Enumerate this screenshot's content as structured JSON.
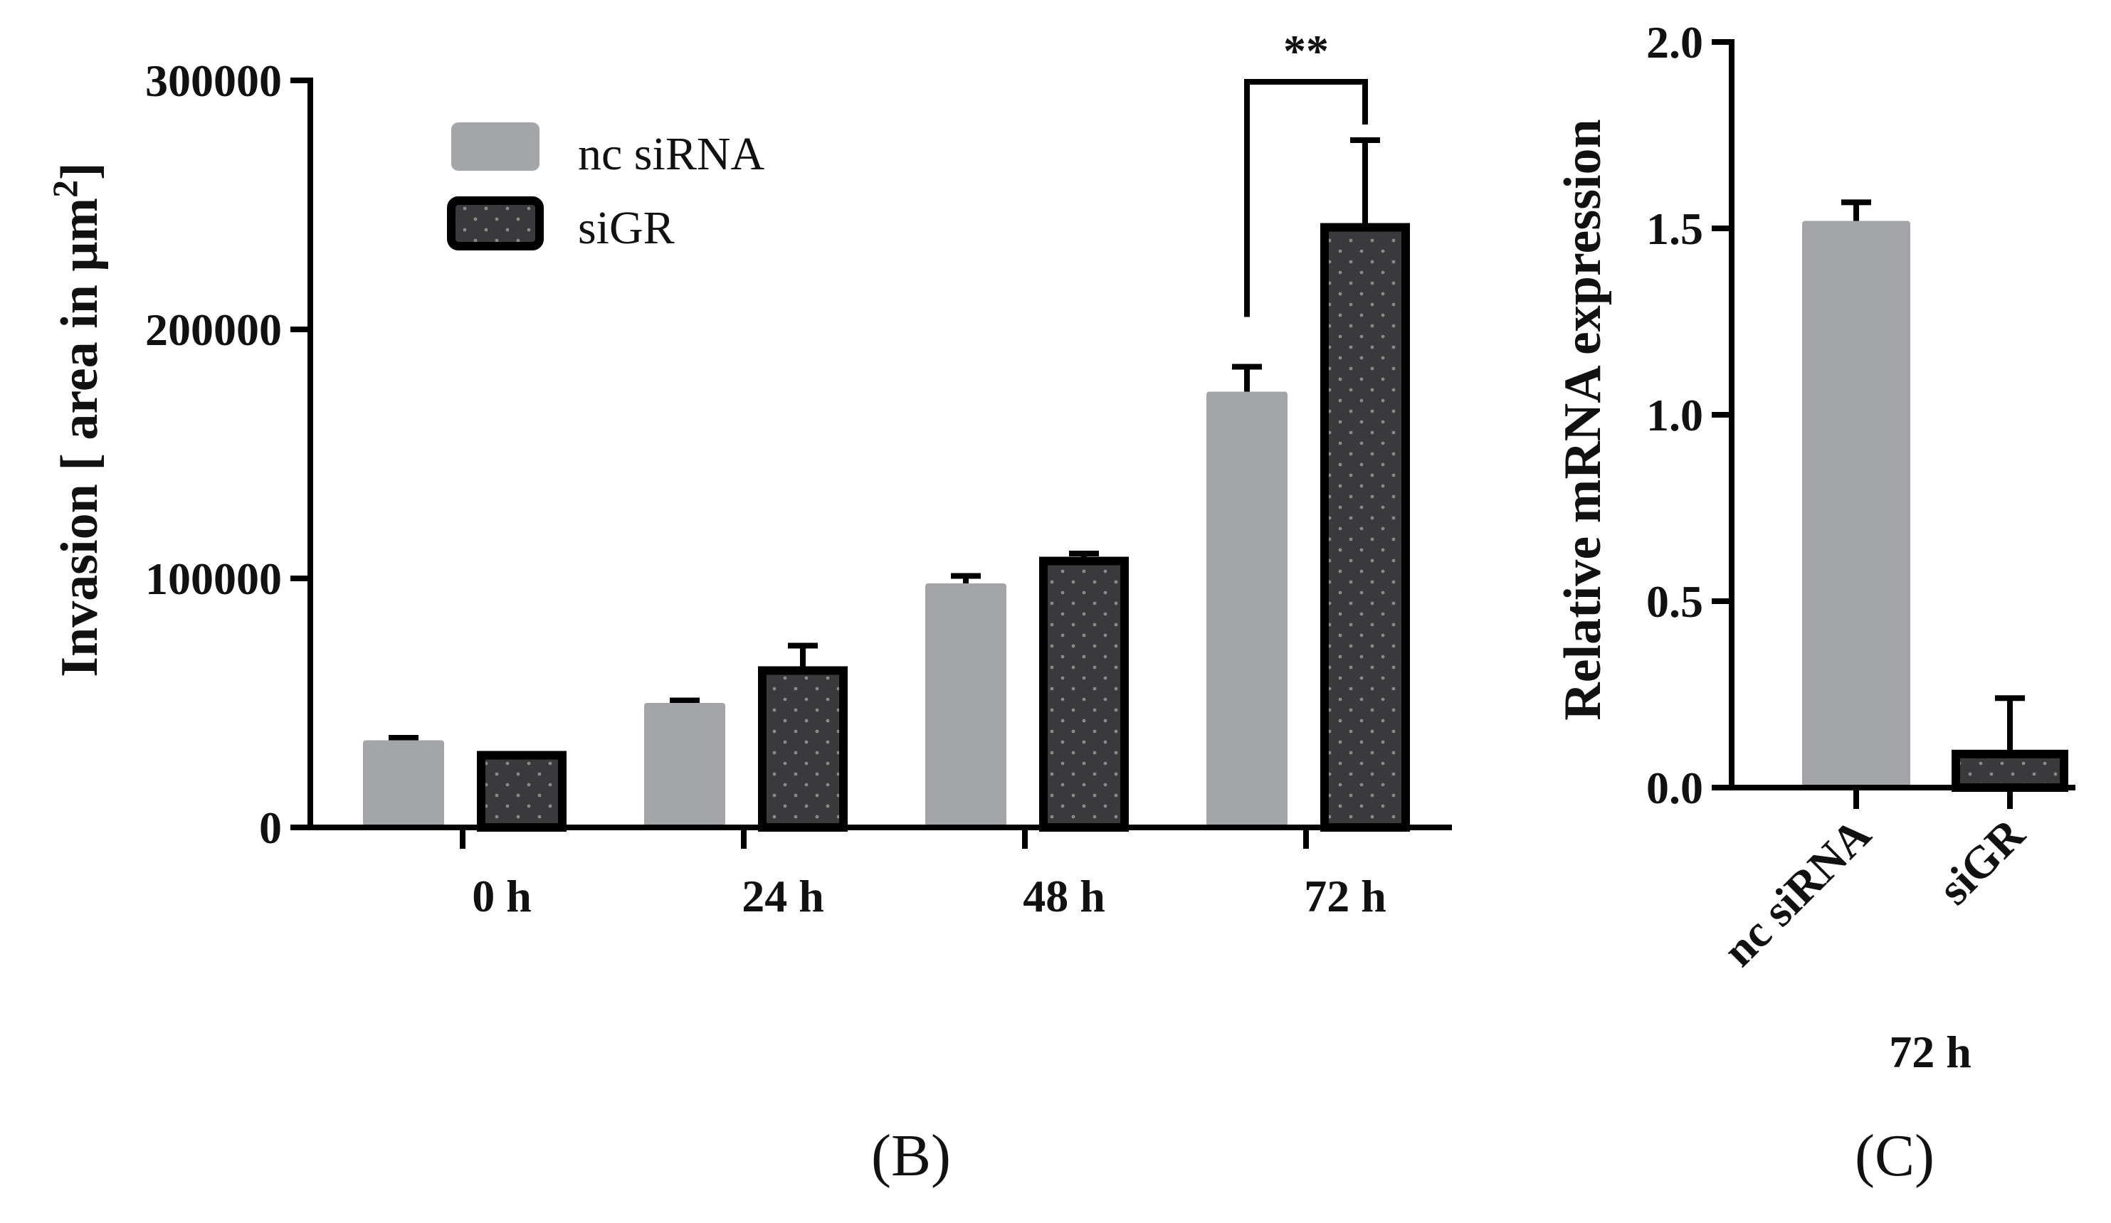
{
  "colors": {
    "nc_fill": "#a4a5a8",
    "sigr_fill": "#3a3a3c",
    "sigr_edge": "#000000",
    "dot": "#8a8a8a",
    "axis": "#000000"
  },
  "chart_data": [
    {
      "panel": "(B)",
      "type": "bar",
      "ylabel_main": "Invasion [ area in μm",
      "ylabel_sup": "2",
      "ylabel_close": "]",
      "categories": [
        "0 h",
        "24 h",
        "48 h",
        "72 h"
      ],
      "ylim": [
        0,
        300000
      ],
      "yticks": [
        0,
        100000,
        200000,
        300000
      ],
      "ytick_labels": [
        "0",
        "100000",
        "200000",
        "300000"
      ],
      "legend": [
        "nc siRNA",
        "siGR"
      ],
      "legend_position": "top-left",
      "series": [
        {
          "name": "nc siRNA",
          "values": [
            35000,
            50000,
            98000,
            175000
          ],
          "errors": [
            1000,
            1000,
            3000,
            10000
          ]
        },
        {
          "name": "siGR",
          "values": [
            29000,
            63000,
            107000,
            241000
          ],
          "errors": [
            500,
            10000,
            3000,
            35000
          ]
        }
      ],
      "significance": {
        "label": "**",
        "category": "72 h"
      }
    },
    {
      "panel": "(C)",
      "type": "bar",
      "ylabel": "Relative mRNA expression",
      "categories": [
        "nc siRNA",
        "siGR"
      ],
      "values": [
        1.52,
        0.09
      ],
      "errors": [
        0.05,
        0.15
      ],
      "ylim": [
        0,
        2.0
      ],
      "yticks": [
        0,
        0.5,
        1.0,
        1.5,
        2.0
      ],
      "ytick_labels": [
        "0.0",
        "0.5",
        "1.0",
        "1.5",
        "2.0"
      ],
      "group_label": "72 h"
    }
  ]
}
